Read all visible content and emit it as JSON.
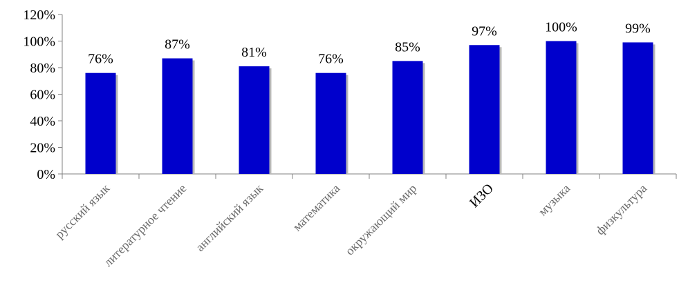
{
  "chart_data": {
    "type": "bar",
    "categories": [
      "русский язык",
      "литературное чтение",
      "английский язык",
      "математика",
      "окружающий мир",
      "ИЗО",
      "музыка",
      "физкультура"
    ],
    "values": [
      76,
      87,
      81,
      76,
      85,
      97,
      100,
      99
    ],
    "data_labels": [
      "76%",
      "87%",
      "81%",
      "76%",
      "85%",
      "97%",
      "100%",
      "99%"
    ],
    "ylim": [
      0,
      120
    ],
    "y_ticks": [
      "0%",
      "20%",
      "40%",
      "60%",
      "80%",
      "100%",
      "120%"
    ],
    "y_tick_values": [
      0,
      20,
      40,
      60,
      80,
      100,
      120
    ],
    "gridlines": false,
    "legend": "none",
    "bar_color": "#0000cc"
  }
}
